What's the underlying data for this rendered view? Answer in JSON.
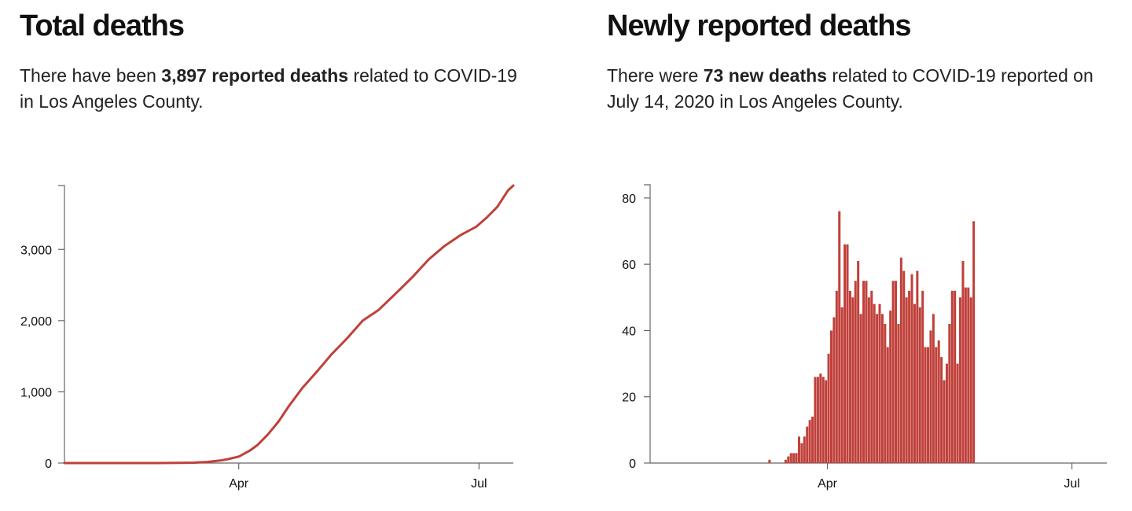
{
  "left": {
    "title": "Total deaths",
    "summary": {
      "pre": "There have been ",
      "bold": "3,897 reported deaths",
      "post": " related to COVID-19 in Los Angeles County."
    }
  },
  "right": {
    "title": "Newly reported deaths",
    "summary": {
      "pre": "There were ",
      "bold": "73 new deaths",
      "post": " related to COVID-19 reported on July 14, 2020 in Los Angeles County."
    }
  },
  "chart_data": [
    {
      "type": "line",
      "title": "Total deaths",
      "color": "#c0403a",
      "xlim": [
        "2020-01-26",
        "2020-07-14"
      ],
      "ylim": [
        0,
        3897
      ],
      "y_ticks": [
        0,
        1000,
        2000,
        3000
      ],
      "y_tick_labels": [
        "0",
        "1,000",
        "2,000",
        "3,000"
      ],
      "x_ticks": [
        "2020-04-01",
        "2020-07-01"
      ],
      "x_tick_labels": [
        "Apr",
        "Jul"
      ],
      "x": [
        "2020-01-26",
        "2020-03-01",
        "2020-03-10",
        "2020-03-15",
        "2020-03-20",
        "2020-03-25",
        "2020-03-28",
        "2020-04-01",
        "2020-04-05",
        "2020-04-08",
        "2020-04-12",
        "2020-04-16",
        "2020-04-20",
        "2020-04-25",
        "2020-05-01",
        "2020-05-06",
        "2020-05-12",
        "2020-05-18",
        "2020-05-24",
        "2020-05-31",
        "2020-06-06",
        "2020-06-12",
        "2020-06-18",
        "2020-06-24",
        "2020-06-30",
        "2020-07-04",
        "2020-07-08",
        "2020-07-12",
        "2020-07-14"
      ],
      "values": [
        0,
        0,
        2,
        5,
        15,
        35,
        55,
        90,
        170,
        250,
        400,
        580,
        800,
        1050,
        1300,
        1520,
        1750,
        2000,
        2150,
        2400,
        2620,
        2860,
        3050,
        3200,
        3320,
        3450,
        3600,
        3830,
        3897
      ]
    },
    {
      "type": "bar",
      "title": "Newly reported deaths",
      "color": "#c0403a",
      "xlim": [
        "2020-01-26",
        "2020-07-14"
      ],
      "ylim": [
        0,
        84
      ],
      "y_ticks": [
        0,
        20,
        40,
        60,
        80
      ],
      "y_tick_labels": [
        "0",
        "20",
        "40",
        "60",
        "80"
      ],
      "x_ticks": [
        "2020-04-01",
        "2020-07-01"
      ],
      "x_tick_labels": [
        "Apr",
        "Jul"
      ],
      "start": "2020-03-01",
      "values": [
        0,
        0,
        0,
        0,
        0,
        0,
        0,
        0,
        0,
        0,
        1,
        0,
        0,
        0,
        0,
        0,
        1,
        2,
        3,
        3,
        3,
        8,
        6,
        8,
        11,
        13,
        14,
        26,
        26,
        27,
        26,
        25,
        33,
        40,
        44,
        52,
        76,
        47,
        66,
        66,
        52,
        50,
        55,
        61,
        45,
        55,
        55,
        50,
        52,
        48,
        45,
        48,
        45,
        42,
        35,
        46,
        55,
        55,
        42,
        62,
        58,
        50,
        52,
        57,
        48,
        58,
        47,
        52,
        35,
        35,
        40,
        45,
        35,
        37,
        32,
        25,
        30,
        42,
        52,
        52,
        30,
        50,
        61,
        53,
        53,
        50,
        73
      ]
    }
  ]
}
